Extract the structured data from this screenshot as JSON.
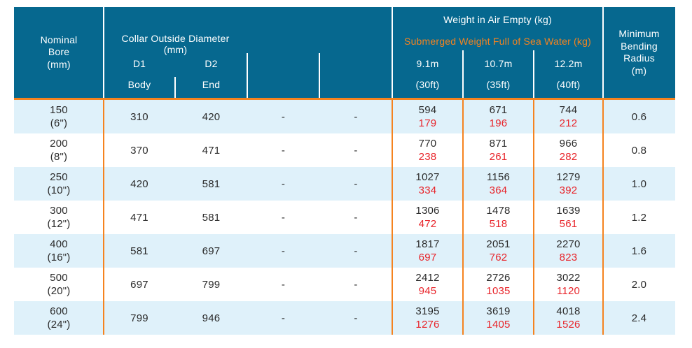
{
  "colors": {
    "header_bg": "#06688F",
    "accent_orange": "#F5831F",
    "alt_row_bg": "#DFF1FA",
    "submerged_red": "#E8242A",
    "body_text": "#2B2B2B"
  },
  "header": {
    "nominal_bore": {
      "line1": "Nominal",
      "line2": "Bore",
      "line3": "(mm)"
    },
    "collar": {
      "title": "Collar Outside Diameter",
      "unit": "(mm)",
      "d1_label": "D1",
      "d2_label": "D2",
      "d1_sub": "Body",
      "d2_sub": "End"
    },
    "weight": {
      "air_title": "Weight in Air Empty (kg)",
      "submerged_title": "Submerged Weight Full of Sea Water (kg)",
      "lengths": [
        {
          "meters": "9.1m",
          "feet": "(30ft)"
        },
        {
          "meters": "10.7m",
          "feet": "(35ft)"
        },
        {
          "meters": "12.2m",
          "feet": "(40ft)"
        }
      ]
    },
    "bending": {
      "line1": "Minimum",
      "line2": "Bending",
      "line3": "Radius",
      "line4": "(m)"
    }
  },
  "rows": [
    {
      "bore": "150",
      "bore_inch": "(6\")",
      "d1_body": "310",
      "d2_end": "420",
      "col3": "-",
      "col4": "-",
      "weights": [
        {
          "air": "594",
          "sub": "179"
        },
        {
          "air": "671",
          "sub": "196"
        },
        {
          "air": "744",
          "sub": "212"
        }
      ],
      "min_bend_radius": "0.6"
    },
    {
      "bore": "200",
      "bore_inch": "(8\")",
      "d1_body": "370",
      "d2_end": "471",
      "col3": "-",
      "col4": "-",
      "weights": [
        {
          "air": "770",
          "sub": "238"
        },
        {
          "air": "871",
          "sub": "261"
        },
        {
          "air": "966",
          "sub": "282"
        }
      ],
      "min_bend_radius": "0.8"
    },
    {
      "bore": "250",
      "bore_inch": "(10\")",
      "d1_body": "420",
      "d2_end": "581",
      "col3": "-",
      "col4": "-",
      "weights": [
        {
          "air": "1027",
          "sub": "334"
        },
        {
          "air": "1156",
          "sub": "364"
        },
        {
          "air": "1279",
          "sub": "392"
        }
      ],
      "min_bend_radius": "1.0"
    },
    {
      "bore": "300",
      "bore_inch": "(12\")",
      "d1_body": "471",
      "d2_end": "581",
      "col3": "-",
      "col4": "-",
      "weights": [
        {
          "air": "1306",
          "sub": "472"
        },
        {
          "air": "1478",
          "sub": "518"
        },
        {
          "air": "1639",
          "sub": "561"
        }
      ],
      "min_bend_radius": "1.2"
    },
    {
      "bore": "400",
      "bore_inch": "(16\")",
      "d1_body": "581",
      "d2_end": "697",
      "col3": "-",
      "col4": "-",
      "weights": [
        {
          "air": "1817",
          "sub": "697"
        },
        {
          "air": "2051",
          "sub": "762"
        },
        {
          "air": "2270",
          "sub": "823"
        }
      ],
      "min_bend_radius": "1.6"
    },
    {
      "bore": "500",
      "bore_inch": "(20\")",
      "d1_body": "697",
      "d2_end": "799",
      "col3": "-",
      "col4": "-",
      "weights": [
        {
          "air": "2412",
          "sub": "945"
        },
        {
          "air": "2726",
          "sub": "1035"
        },
        {
          "air": "3022",
          "sub": "1120"
        }
      ],
      "min_bend_radius": "2.0"
    },
    {
      "bore": "600",
      "bore_inch": "(24\")",
      "d1_body": "799",
      "d2_end": "946",
      "col3": "-",
      "col4": "-",
      "weights": [
        {
          "air": "3195",
          "sub": "1276"
        },
        {
          "air": "3619",
          "sub": "1405"
        },
        {
          "air": "4018",
          "sub": "1526"
        }
      ],
      "min_bend_radius": "2.4"
    }
  ]
}
